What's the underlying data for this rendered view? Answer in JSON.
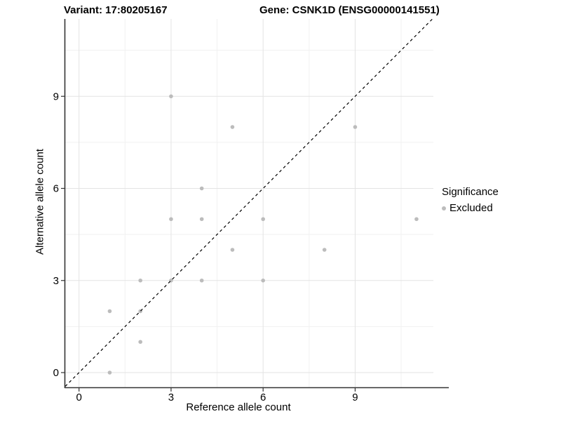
{
  "titles": {
    "variant": "Variant: 17:80205167",
    "gene": "Gene: CSNK1D (ENSG00000141551)"
  },
  "chart_data": {
    "type": "scatter",
    "title_left": "Variant: 17:80205167",
    "title_right": "Gene: CSNK1D (ENSG00000141551)",
    "xlabel": "Reference allele count",
    "ylabel": "Alternative allele count",
    "xlim": [
      -0.45,
      11.55
    ],
    "ylim": [
      -0.48,
      11.52
    ],
    "x_ticks": [
      0,
      3,
      6,
      9
    ],
    "y_ticks": [
      0,
      3,
      6,
      9
    ],
    "minor_breaks": [
      1.5,
      4.5,
      7.5,
      10.5
    ],
    "grid": true,
    "points": [
      [
        1,
        0
      ],
      [
        1,
        2
      ],
      [
        2,
        1
      ],
      [
        2,
        2
      ],
      [
        2,
        3
      ],
      [
        3,
        3
      ],
      [
        3,
        5
      ],
      [
        3,
        9
      ],
      [
        4,
        3
      ],
      [
        4,
        5
      ],
      [
        4,
        6
      ],
      [
        5,
        4
      ],
      [
        5,
        8
      ],
      [
        6,
        3
      ],
      [
        6,
        5
      ],
      [
        8,
        4
      ],
      [
        9,
        8
      ],
      [
        11,
        5
      ]
    ],
    "point_color": "#bcbcbc",
    "point_radius": 2.8,
    "identity_line": {
      "equation": "y = x",
      "slope": 1,
      "intercept": 0,
      "style": "dashed",
      "color": "#000000"
    },
    "colors": {
      "grid_major": "#e3e3e3",
      "grid_minor": "#f1f1f1",
      "axis_line": "#333333",
      "tick": "#333333"
    },
    "legend": {
      "position": "right",
      "title": "Significance",
      "items": [
        {
          "label": "Excluded",
          "color": "#bcbcbc"
        }
      ]
    }
  }
}
